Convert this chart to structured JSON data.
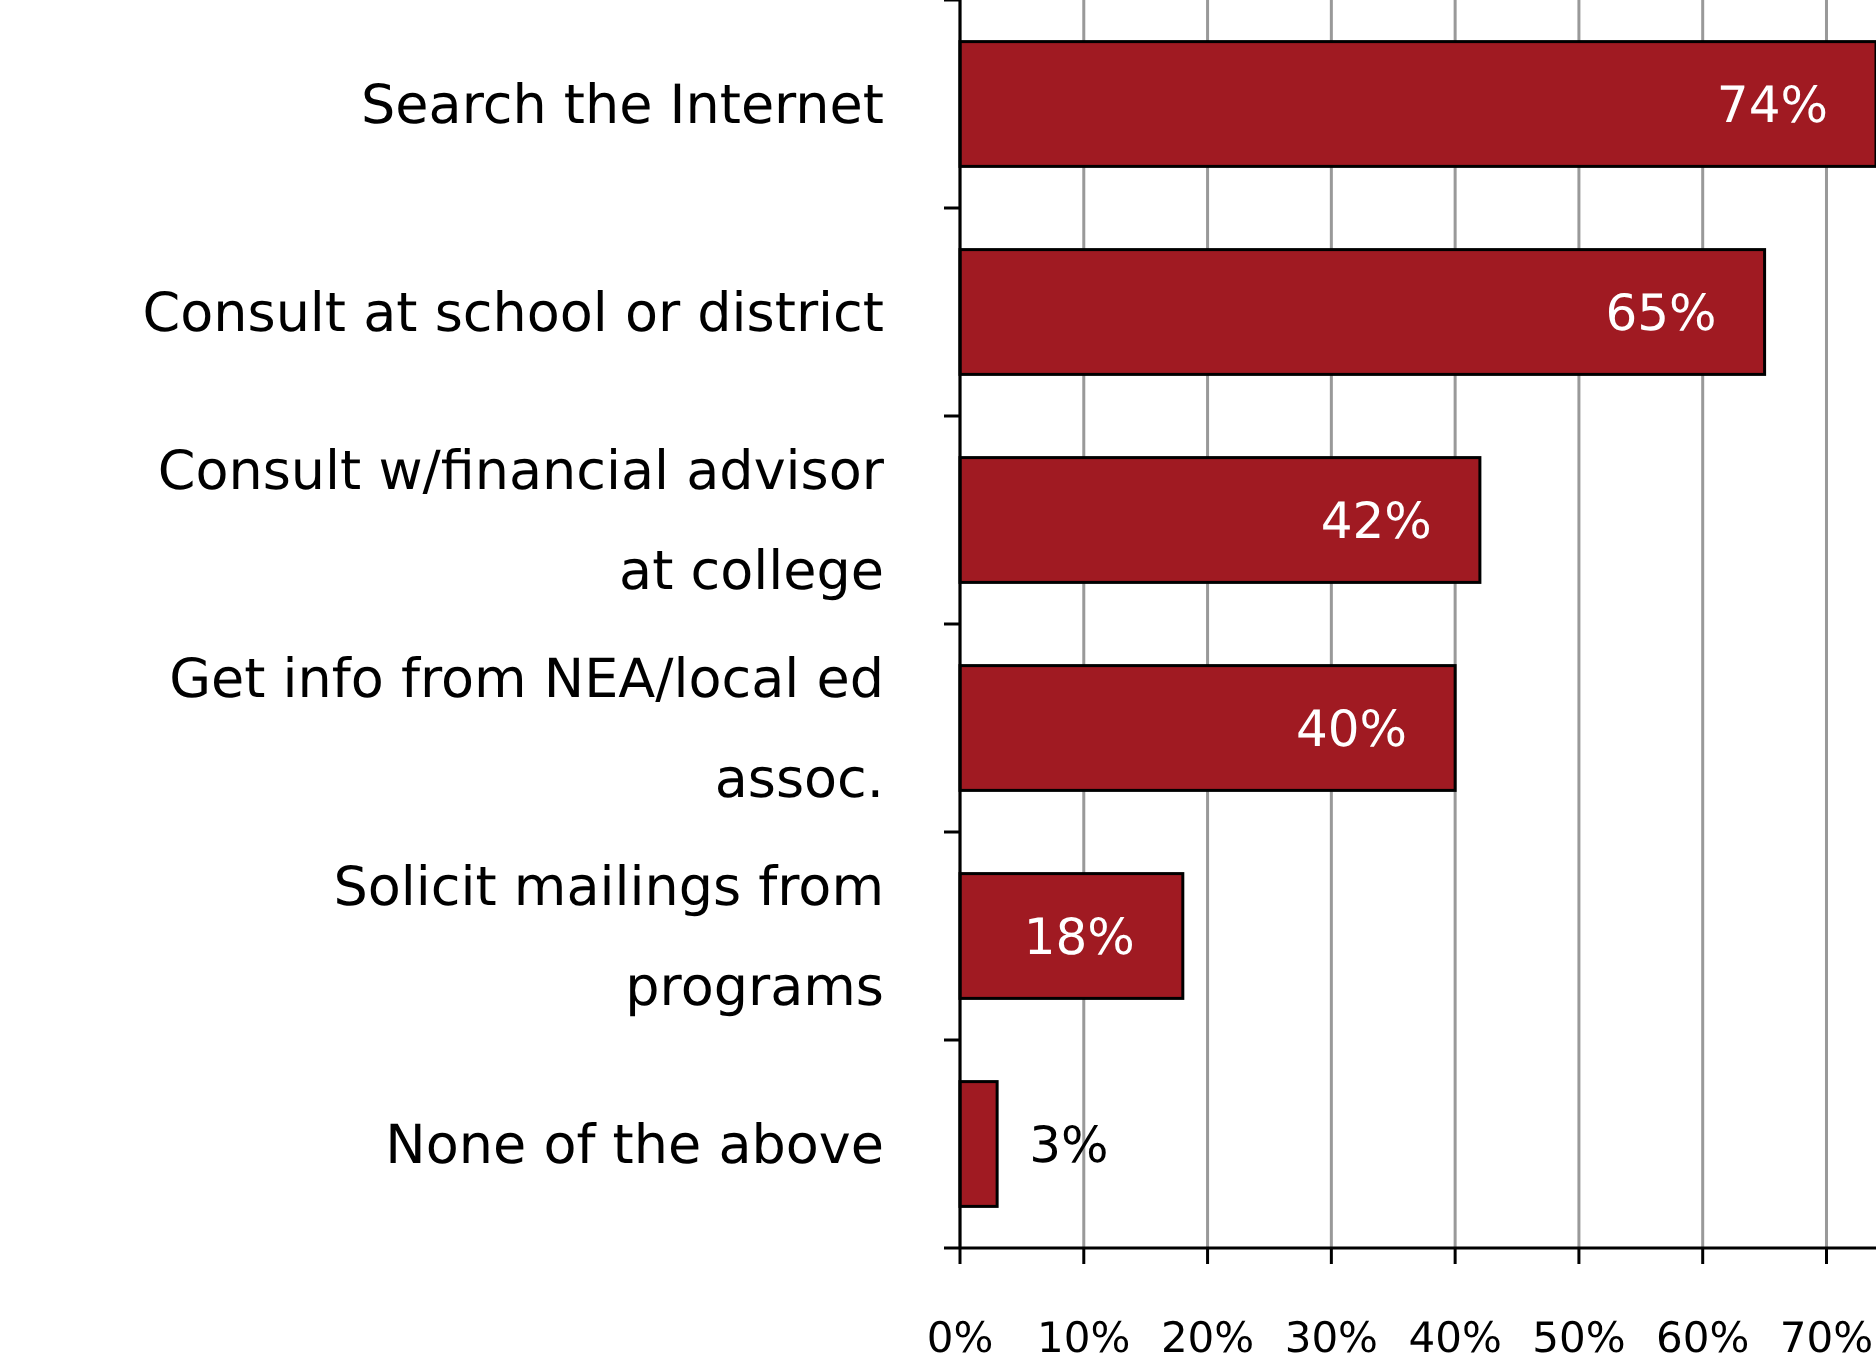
{
  "chart_data": {
    "type": "bar",
    "orientation": "horizontal",
    "categories": [
      "Search the Internet",
      "Consult at school or district",
      "Consult w/financial advisor at college",
      "Get info from NEA/local ed assoc.",
      "Solicit mailings from programs",
      "None of the above"
    ],
    "values": [
      74,
      65,
      42,
      40,
      18,
      3
    ],
    "value_labels": [
      "74%",
      "65%",
      "42%",
      "40%",
      "18%",
      "3%"
    ],
    "color": "#a01a22",
    "xlim": [
      0,
      74
    ],
    "xticks": [
      {
        "value": 0,
        "label": "0%"
      },
      {
        "value": 10,
        "label": "10%"
      },
      {
        "value": 20,
        "label": "20%"
      },
      {
        "value": 30,
        "label": "30%"
      },
      {
        "value": 40,
        "label": "40%"
      },
      {
        "value": 50,
        "label": "50%"
      },
      {
        "value": 60,
        "label": "60%"
      },
      {
        "value": 70,
        "label": "70%"
      }
    ],
    "grid": "x"
  }
}
